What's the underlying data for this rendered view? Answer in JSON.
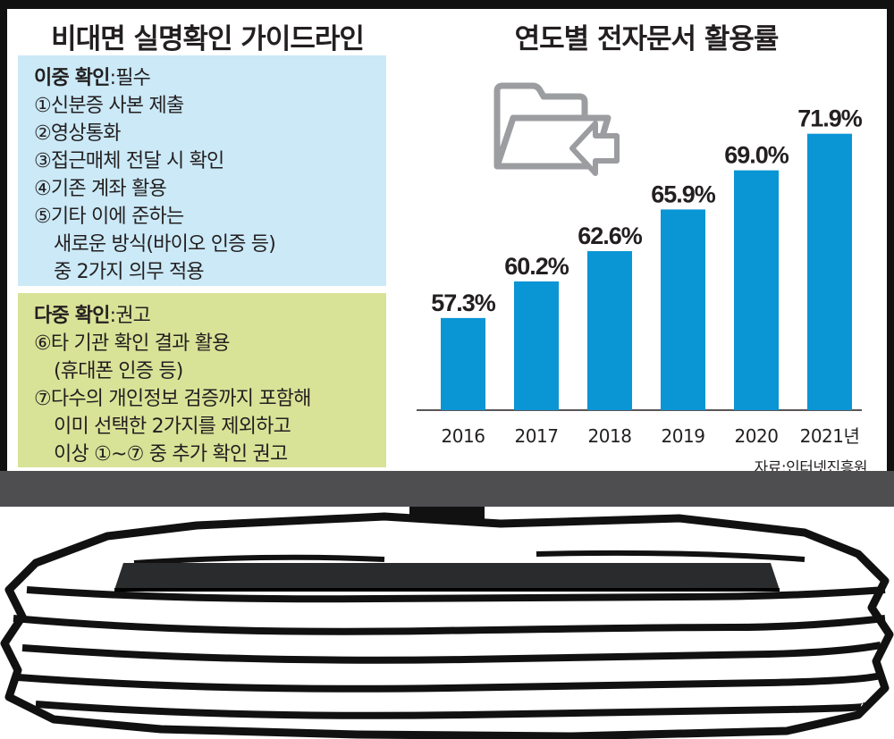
{
  "guideline": {
    "title": "비대면 실명확인 가이드라인",
    "dual": {
      "heading": "이중 확인",
      "tag": ":필수",
      "items": [
        "①신분증 사본 제출",
        "②영상통화",
        "③접근매체 전달 시 확인",
        "④기존 계좌 활용",
        "⑤기타 이에 준하는"
      ],
      "continuation": [
        "새로운 방식(바이오 인증 등)",
        "중 2가지 의무 적용"
      ]
    },
    "multi": {
      "heading": "다중 확인",
      "tag": ":권고",
      "item6": "⑥타 기관 확인 결과 활용",
      "item6_cont": "(휴대폰 인증 등)",
      "item7": "⑦다수의 개인정보 검증까지 포함해",
      "item7_cont": [
        "이미 선택한 2가지를 제외하고",
        "이상 ①~⑦ 중 추가 확인 권고"
      ]
    }
  },
  "chart_data": {
    "type": "bar",
    "title": "연도별 전자문서 활용률",
    "categories": [
      "2016",
      "2017",
      "2018",
      "2019",
      "2020",
      "2021년"
    ],
    "values": [
      57.3,
      60.2,
      62.6,
      65.9,
      69.0,
      71.9
    ],
    "value_labels": [
      "57.3%",
      "60.2%",
      "62.6%",
      "65.9%",
      "69.0%",
      "71.9%"
    ],
    "unit": "%",
    "ylim": [
      50,
      74
    ],
    "bar_color": "#0a95d5",
    "grid": false,
    "source": "자료:인터넷진흥원"
  },
  "icons": {
    "folder": "folder-arrow-icon",
    "paper_stack": "paper-stack-illustration"
  }
}
